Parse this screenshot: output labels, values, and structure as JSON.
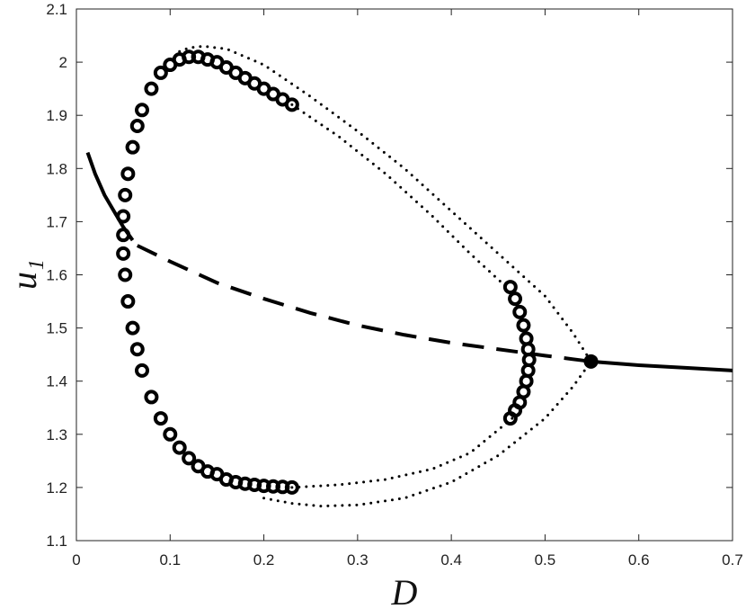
{
  "chart_data": {
    "type": "line",
    "xlabel": "D",
    "ylabel": "u₁",
    "xlim": [
      0,
      0.7
    ],
    "ylim": [
      1.1,
      2.1
    ],
    "xticks": [
      0,
      0.1,
      0.2,
      0.3,
      0.4,
      0.5,
      0.6,
      0.7
    ],
    "yticks": [
      1.1,
      1.2,
      1.3,
      1.4,
      1.5,
      1.6,
      1.7,
      1.8,
      1.9,
      2,
      2.1
    ],
    "series": [
      {
        "style": "solid",
        "color": "#000000",
        "x": [
          0.012,
          0.02,
          0.03,
          0.04,
          0.05,
          0.06
        ],
        "values": [
          1.83,
          1.79,
          1.75,
          1.72,
          1.69,
          1.665
        ]
      },
      {
        "style": "dashed",
        "color": "#000000",
        "x": [
          0.065,
          0.1,
          0.15,
          0.2,
          0.25,
          0.3,
          0.35,
          0.4,
          0.45,
          0.5,
          0.549
        ],
        "values": [
          1.655,
          1.625,
          1.585,
          1.555,
          1.528,
          1.505,
          1.487,
          1.472,
          1.46,
          1.448,
          1.437
        ]
      },
      {
        "style": "solid",
        "color": "#000000",
        "x": [
          0.549,
          0.6,
          0.65,
          0.7
        ],
        "values": [
          1.437,
          1.43,
          1.425,
          1.42
        ]
      },
      {
        "style": "dotted",
        "color": "#000000",
        "x": [
          0.11,
          0.12,
          0.135,
          0.16,
          0.2,
          0.25,
          0.3,
          0.35,
          0.4,
          0.45,
          0.5,
          0.53,
          0.549
        ],
        "values": [
          2.02,
          2.027,
          2.03,
          2.025,
          1.995,
          1.935,
          1.87,
          1.8,
          1.72,
          1.64,
          1.56,
          1.49,
          1.437
        ]
      },
      {
        "style": "dotted",
        "color": "#000000",
        "x": [
          0.23,
          0.28,
          0.33,
          0.38,
          0.42,
          0.46
        ],
        "values": [
          1.92,
          1.86,
          1.79,
          1.71,
          1.64,
          1.575
        ]
      },
      {
        "style": "dotted",
        "color": "#000000",
        "x": [
          0.2,
          0.23,
          0.26,
          0.3,
          0.35,
          0.4,
          0.45,
          0.5,
          0.53,
          0.549
        ],
        "values": [
          1.18,
          1.17,
          1.165,
          1.167,
          1.18,
          1.21,
          1.26,
          1.33,
          1.39,
          1.437
        ]
      },
      {
        "style": "dotted",
        "color": "#000000",
        "x": [
          0.23,
          0.28,
          0.33,
          0.38,
          0.42,
          0.465
        ],
        "values": [
          1.2,
          1.205,
          1.215,
          1.235,
          1.265,
          1.33
        ]
      },
      {
        "style": "circles",
        "color": "#000000",
        "x": [
          0.05,
          0.052,
          0.055,
          0.06,
          0.065,
          0.07,
          0.08,
          0.09,
          0.1,
          0.11,
          0.12,
          0.13,
          0.14,
          0.15,
          0.16,
          0.17,
          0.18,
          0.19,
          0.2,
          0.21,
          0.22,
          0.23
        ],
        "values": [
          1.71,
          1.75,
          1.79,
          1.84,
          1.88,
          1.91,
          1.95,
          1.98,
          1.995,
          2.005,
          2.01,
          2.01,
          2.005,
          2.0,
          1.99,
          1.98,
          1.97,
          1.96,
          1.95,
          1.94,
          1.93,
          1.92
        ]
      },
      {
        "style": "circles",
        "color": "#000000",
        "x": [
          0.05,
          0.05,
          0.052,
          0.055,
          0.06,
          0.065,
          0.07,
          0.08,
          0.09,
          0.1,
          0.11,
          0.12,
          0.13,
          0.14,
          0.15,
          0.16,
          0.17,
          0.18,
          0.19,
          0.2,
          0.21,
          0.22,
          0.23
        ],
        "values": [
          1.675,
          1.64,
          1.6,
          1.55,
          1.5,
          1.46,
          1.42,
          1.37,
          1.33,
          1.3,
          1.275,
          1.255,
          1.24,
          1.23,
          1.225,
          1.215,
          1.21,
          1.207,
          1.205,
          1.203,
          1.202,
          1.201,
          1.2
        ]
      },
      {
        "style": "circles",
        "color": "#000000",
        "x": [
          0.463,
          0.468,
          0.473,
          0.477,
          0.48,
          0.482,
          0.483,
          0.482,
          0.48,
          0.477,
          0.473,
          0.468,
          0.463
        ],
        "values": [
          1.577,
          1.555,
          1.53,
          1.505,
          1.48,
          1.46,
          1.44,
          1.42,
          1.4,
          1.38,
          1.36,
          1.345,
          1.33
        ]
      },
      {
        "style": "point",
        "color": "#000000",
        "x": [
          0.549
        ],
        "values": [
          1.437
        ]
      }
    ]
  }
}
